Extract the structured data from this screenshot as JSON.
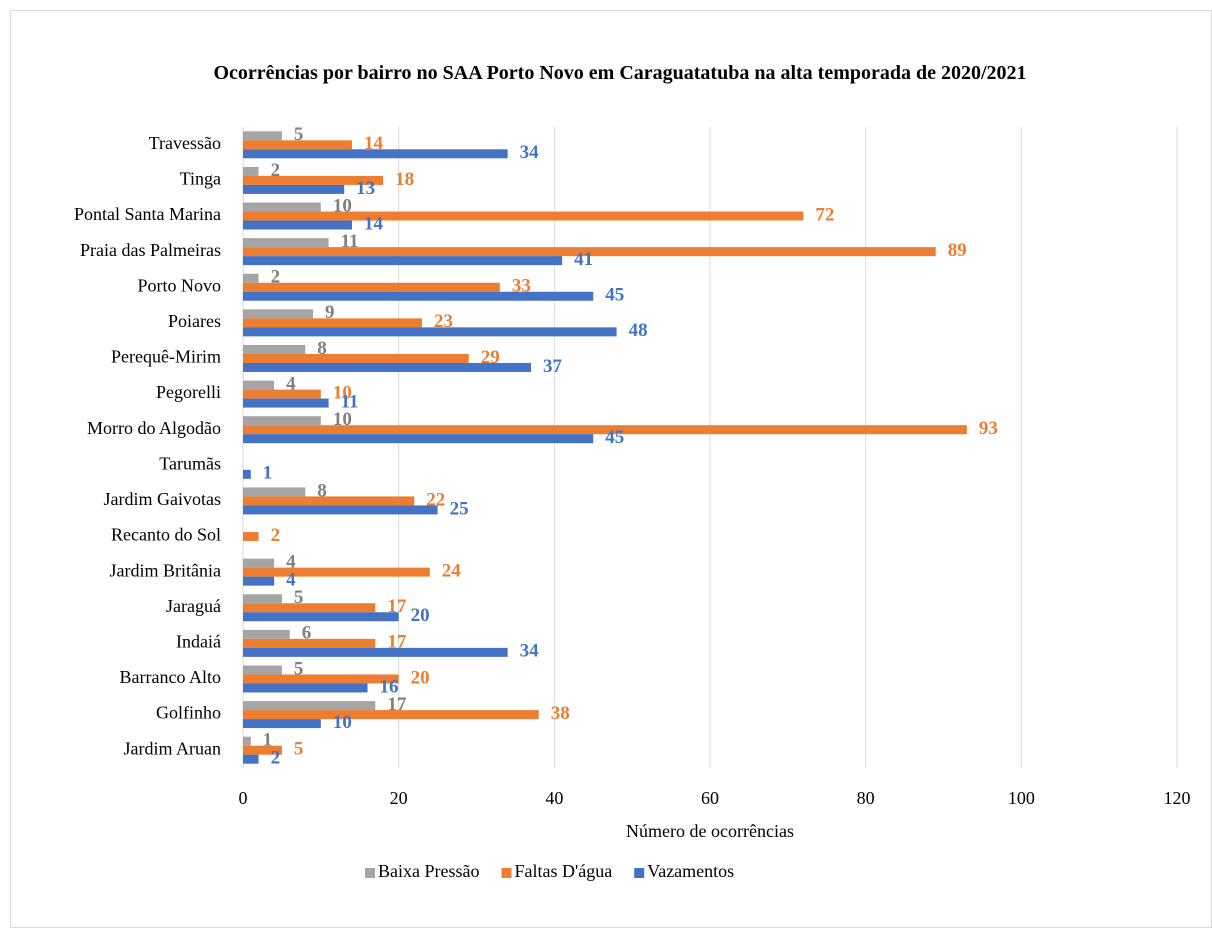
{
  "chart_data": {
    "type": "bar",
    "orientation": "horizontal",
    "title": "Ocorrências por bairro no SAA Porto Novo em Caraguatatuba na alta temporada de 2020/2021",
    "xlabel": "Número de ocorrências",
    "categories": [
      "Travessão",
      "Tinga",
      "Pontal Santa Marina",
      "Praia das Palmeiras",
      "Porto Novo",
      "Poiares",
      "Perequê-Mirim",
      "Pegorelli",
      "Morro do Algodão",
      "Tarumãs",
      "Jardim Gaivotas",
      "Recanto do Sol",
      "Jardim Britânia",
      "Jaraguá",
      "Indaiá",
      "Barranco Alto",
      "Golfinho",
      "Jardim Aruan"
    ],
    "series": [
      {
        "name": "Baixa Pressão",
        "color": "#a5a5a5",
        "label_color": "#7f7f7f",
        "values": [
          5,
          2,
          10,
          11,
          2,
          9,
          8,
          4,
          10,
          null,
          8,
          null,
          4,
          5,
          6,
          5,
          17,
          1
        ]
      },
      {
        "name": "Faltas D'água",
        "color": "#ed7d31",
        "label_color": "#ed7d31",
        "values": [
          14,
          18,
          72,
          89,
          33,
          23,
          29,
          10,
          93,
          null,
          22,
          2,
          24,
          17,
          17,
          20,
          38,
          5
        ]
      },
      {
        "name": "Vazamentos",
        "color": "#4472c4",
        "label_color": "#4472c4",
        "values": [
          34,
          13,
          14,
          41,
          45,
          48,
          37,
          11,
          45,
          1,
          25,
          null,
          4,
          20,
          34,
          16,
          10,
          2
        ]
      }
    ],
    "xlim": [
      0,
      120
    ],
    "xticks": [
      0,
      20,
      40,
      60,
      80,
      100,
      120
    ],
    "grid": true,
    "legend": "bottom"
  }
}
